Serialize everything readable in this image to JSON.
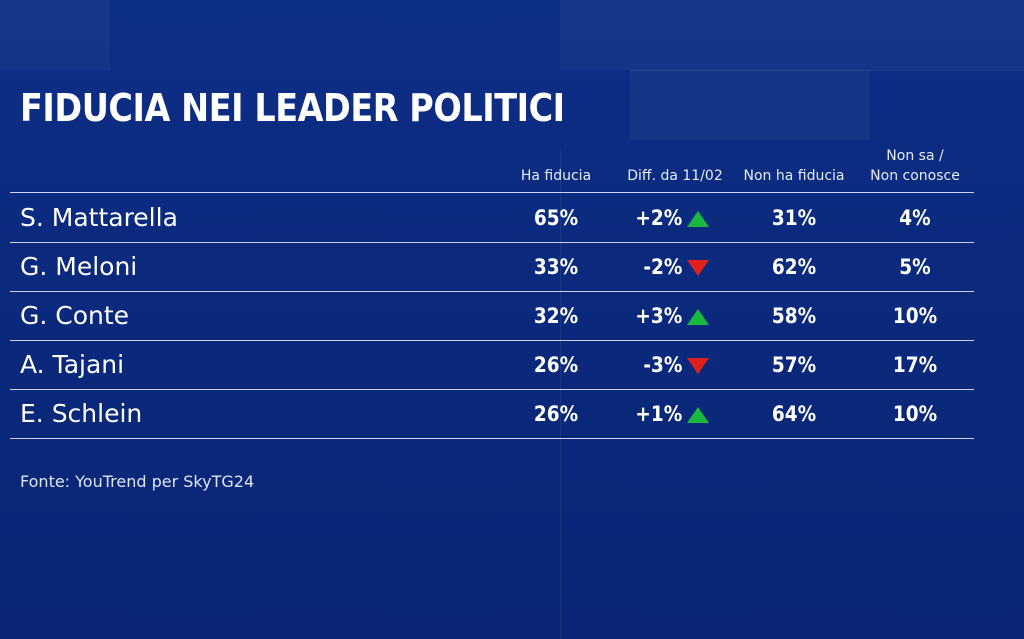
{
  "chart_data": {
    "type": "table",
    "title": "FIDUCIA NEI LEADER POLITICI",
    "columns": {
      "trust": "Ha fiducia",
      "diff": "Diff. da 11/02",
      "no_trust": "Non ha fiducia",
      "unknown_line1": "Non sa /",
      "unknown_line2": "Non conosce"
    },
    "rows": [
      {
        "name": "S. Mattarella",
        "trust": "65%",
        "diff": "+2%",
        "direction": "up",
        "no_trust": "31%",
        "unknown": "4%"
      },
      {
        "name": "G. Meloni",
        "trust": "33%",
        "diff": "-2%",
        "direction": "down",
        "no_trust": "62%",
        "unknown": "5%"
      },
      {
        "name": "G. Conte",
        "trust": "32%",
        "diff": "+3%",
        "direction": "up",
        "no_trust": "58%",
        "unknown": "10%"
      },
      {
        "name": "A. Tajani",
        "trust": "26%",
        "diff": "-3%",
        "direction": "down",
        "no_trust": "57%",
        "unknown": "17%"
      },
      {
        "name": "E. Schlein",
        "trust": "26%",
        "diff": "+1%",
        "direction": "up",
        "no_trust": "64%",
        "unknown": "10%"
      }
    ],
    "values": {
      "trust": [
        65,
        33,
        32,
        26,
        26
      ],
      "diff": [
        2,
        -2,
        3,
        -3,
        1
      ],
      "no_trust": [
        31,
        62,
        58,
        57,
        64
      ],
      "unknown": [
        4,
        5,
        10,
        17,
        10
      ]
    },
    "source": "Fonte: YouTrend per SkyTG24"
  },
  "colors": {
    "up": "#19b83e",
    "down": "#e0211b"
  }
}
